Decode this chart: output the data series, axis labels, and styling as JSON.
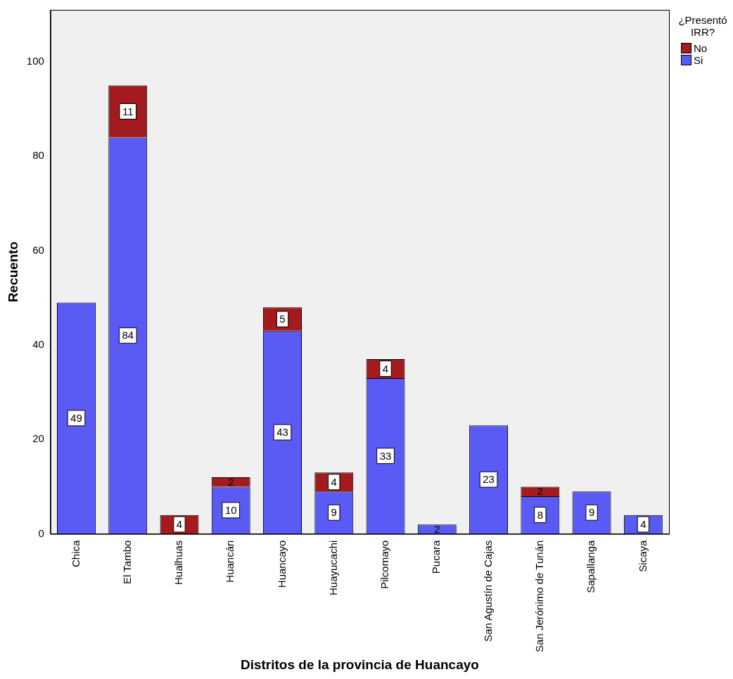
{
  "chart_data": {
    "type": "bar",
    "stacked": true,
    "xlabel": "Distritos de la provincia de Huancayo",
    "ylabel": "Recuento",
    "legend_title": "¿Presentó IRR?",
    "legend": "top right",
    "grid": false,
    "data_labels": true,
    "categories": [
      "Chica",
      "El Tambo",
      "Hualhuas",
      "Huancán",
      "Huancayo",
      "Huayucachi",
      "Pilcomayo",
      "Pucara",
      "San Agustín de Cajas",
      "San Jerónimo de Tunán",
      "Sapallanga",
      "Sicaya"
    ],
    "ylim": [
      0,
      111
    ],
    "yticks": [
      0,
      20,
      40,
      60,
      80,
      100
    ],
    "series": [
      {
        "name": "Si",
        "color": "#5a5af5",
        "values": [
          49,
          84,
          null,
          10,
          43,
          9,
          33,
          2,
          23,
          8,
          9,
          4
        ]
      },
      {
        "name": "No",
        "color": "#a31b1f",
        "values": [
          null,
          11,
          4,
          2,
          5,
          4,
          4,
          null,
          null,
          2,
          null,
          null
        ]
      }
    ]
  }
}
